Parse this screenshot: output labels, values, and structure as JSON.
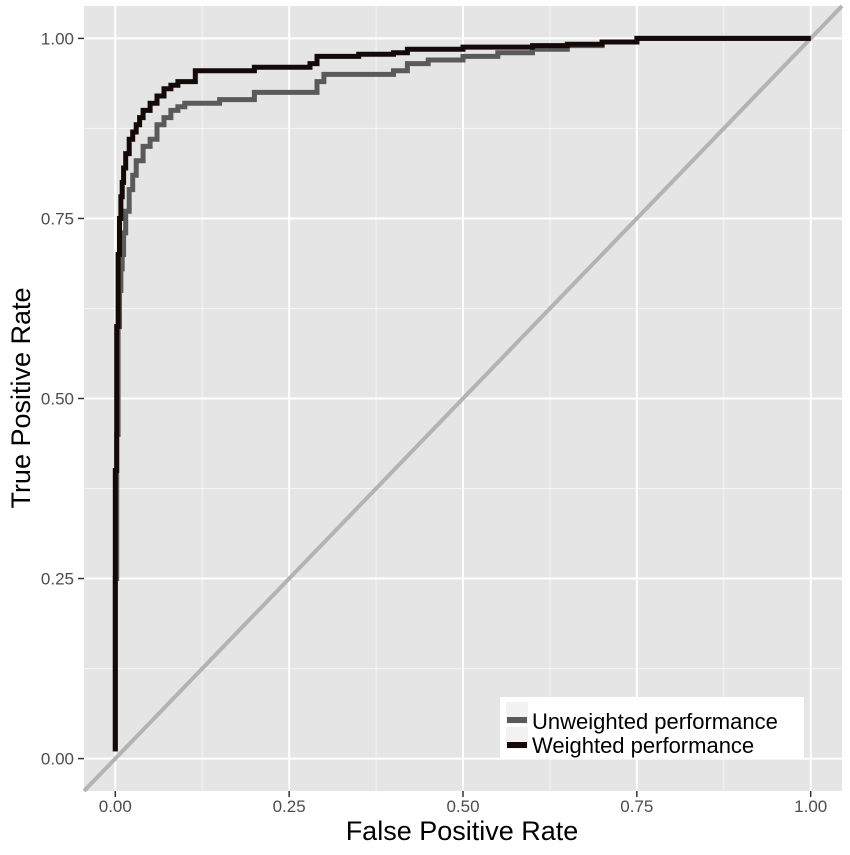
{
  "chart_data": {
    "type": "line",
    "title": "",
    "xlabel": "False Positive Rate",
    "ylabel": "True Positive Rate",
    "xlim": [
      -0.045,
      1.045
    ],
    "ylim": [
      -0.045,
      1.045
    ],
    "x_ticks": [
      0,
      0.25,
      0.5,
      0.75,
      1
    ],
    "x_tick_labels": [
      "0.00",
      "0.25",
      "0.50",
      "0.75",
      "1.00"
    ],
    "y_ticks": [
      0,
      0.25,
      0.5,
      0.75,
      1
    ],
    "y_tick_labels": [
      "0.00",
      "0.25",
      "0.50",
      "0.75",
      "1.00"
    ],
    "grid": true,
    "legend_position": "bottom-right",
    "colors": {
      "panel_background": "#e5e5e5",
      "grid": "#ffffff",
      "diagonal": "#b3b3b3",
      "unweighted": "#5a5a5a",
      "weighted": "#150808"
    },
    "reference_line": {
      "x": [
        0,
        1
      ],
      "y": [
        0,
        1
      ]
    },
    "series": [
      {
        "name": "Unweighted performance",
        "x": [
          0.0,
          0.0,
          0.002,
          0.004,
          0.006,
          0.008,
          0.01,
          0.012,
          0.015,
          0.02,
          0.025,
          0.03,
          0.04,
          0.05,
          0.06,
          0.07,
          0.08,
          0.09,
          0.1,
          0.12,
          0.15,
          0.2,
          0.22,
          0.28,
          0.29,
          0.3,
          0.4,
          0.42,
          0.45,
          0.5,
          0.55,
          0.6,
          0.65,
          0.7,
          0.75,
          1.0
        ],
        "y": [
          0.01,
          0.25,
          0.45,
          0.6,
          0.65,
          0.68,
          0.7,
          0.73,
          0.76,
          0.79,
          0.81,
          0.83,
          0.85,
          0.86,
          0.88,
          0.89,
          0.9,
          0.905,
          0.91,
          0.91,
          0.915,
          0.925,
          0.925,
          0.925,
          0.94,
          0.95,
          0.955,
          0.965,
          0.97,
          0.975,
          0.98,
          0.985,
          0.99,
          0.995,
          1.0,
          1.0
        ]
      },
      {
        "name": "Weighted performance",
        "x": [
          0.0,
          0.0,
          0.002,
          0.004,
          0.006,
          0.008,
          0.01,
          0.012,
          0.015,
          0.02,
          0.025,
          0.03,
          0.035,
          0.04,
          0.05,
          0.06,
          0.07,
          0.08,
          0.09,
          0.1,
          0.115,
          0.15,
          0.2,
          0.25,
          0.28,
          0.29,
          0.35,
          0.4,
          0.42,
          0.45,
          0.5,
          0.6,
          0.65,
          0.7,
          0.75,
          1.0
        ],
        "y": [
          0.01,
          0.4,
          0.6,
          0.7,
          0.75,
          0.78,
          0.8,
          0.82,
          0.84,
          0.86,
          0.87,
          0.88,
          0.89,
          0.9,
          0.91,
          0.92,
          0.93,
          0.935,
          0.94,
          0.94,
          0.955,
          0.955,
          0.96,
          0.96,
          0.965,
          0.975,
          0.978,
          0.98,
          0.985,
          0.985,
          0.988,
          0.99,
          0.992,
          0.995,
          1.0,
          1.0
        ]
      }
    ]
  }
}
